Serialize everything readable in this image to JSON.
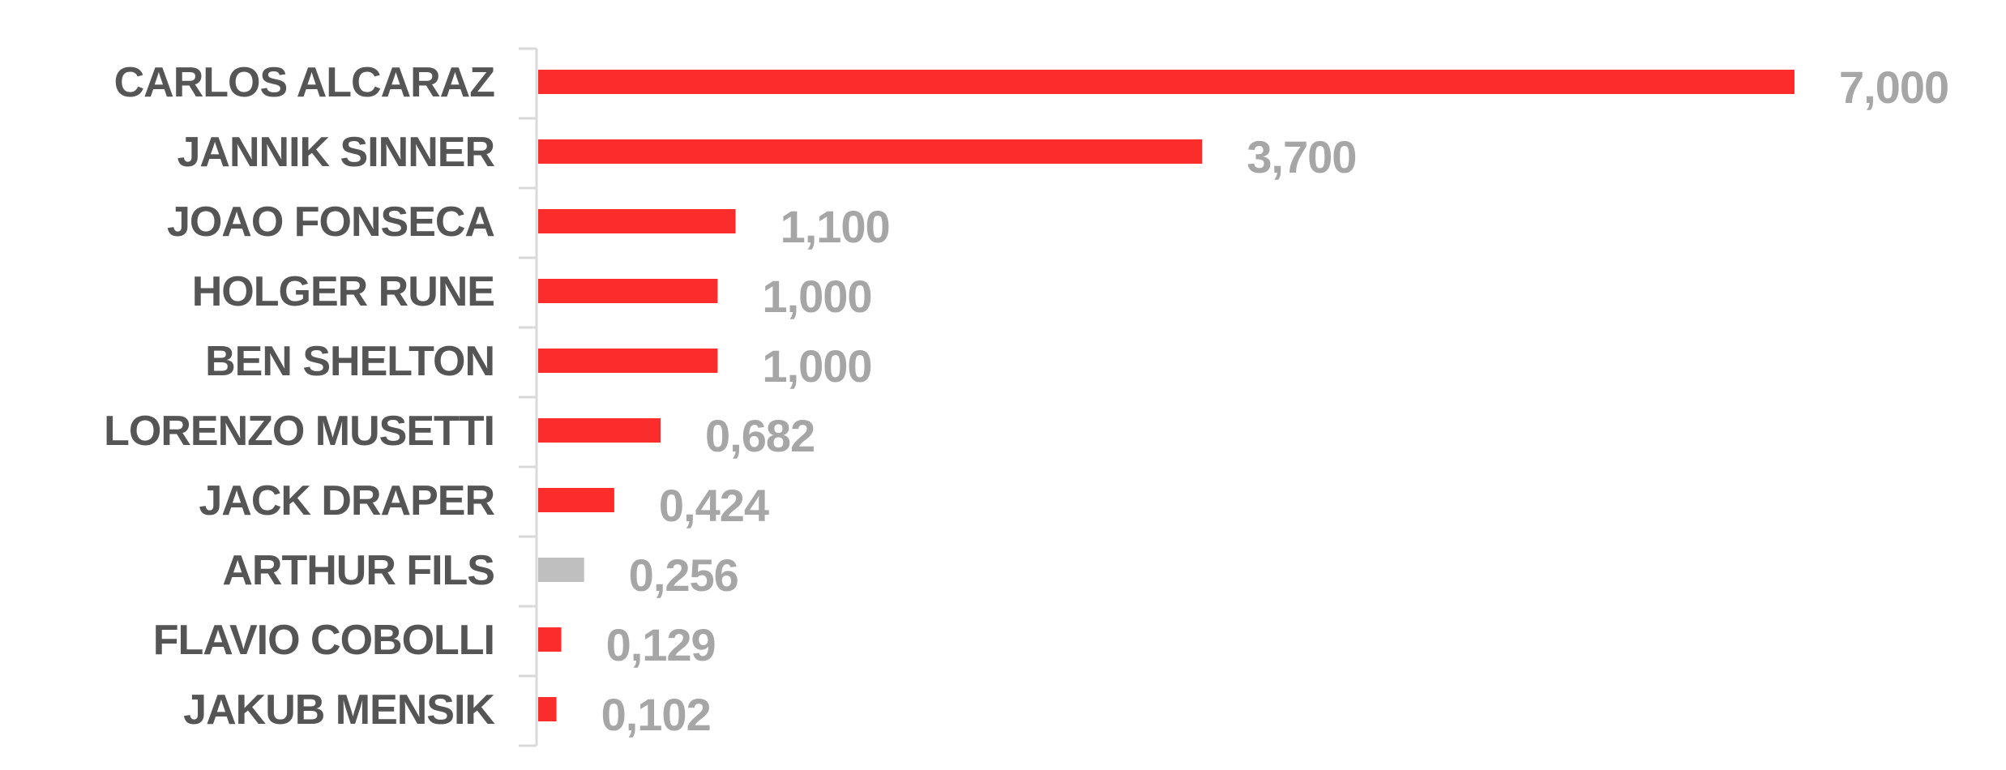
{
  "colors": {
    "bar_default": "#fb2c2c",
    "bar_highlight": "#bfbfbf",
    "category_text": "#555555",
    "value_text": "#a6a6a6",
    "axis": "#d9d9d9"
  },
  "chart_data": {
    "type": "bar",
    "orientation": "horizontal",
    "title": "",
    "xlabel": "",
    "ylabel": "",
    "xlim": [
      0,
      7
    ],
    "grid": false,
    "legend": "none",
    "categories": [
      "CARLOS ALCARAZ",
      "JANNIK SINNER",
      "JOAO FONSECA",
      "HOLGER RUNE",
      "BEN SHELTON",
      "LORENZO MUSETTI",
      "JACK DRAPER",
      "ARTHUR FILS",
      "FLAVIO COBOLLI",
      "JAKUB MENSIK"
    ],
    "values": [
      7.0,
      3.7,
      1.1,
      1.0,
      1.0,
      0.682,
      0.424,
      0.256,
      0.129,
      0.102
    ],
    "value_labels": [
      "7,000",
      "3,700",
      "1,100",
      "1,000",
      "1,000",
      "0,682",
      "0,424",
      "0,256",
      "0,129",
      "0,102"
    ],
    "highlighted": [
      "ARTHUR FILS"
    ]
  }
}
